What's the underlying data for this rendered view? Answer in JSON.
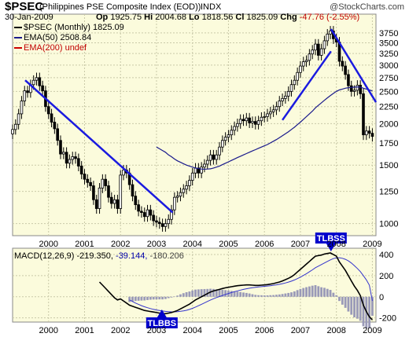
{
  "header": {
    "symbol": "$PSEC",
    "name": "(Philippines PSE Composite Index (EOD))",
    "exchange": "INDX",
    "source": "@StockCharts.com",
    "date": "30-Jan-2009",
    "ohlc": {
      "open_label": "Op",
      "open": "1925.75",
      "high_label": "Hi",
      "high": "2004.68",
      "low_label": "Lo",
      "low": "1818.56",
      "close_label": "Cl",
      "close": "1825.09",
      "chg_label": "Chg",
      "chg": "-47.76 (-2.55%)"
    }
  },
  "legend": {
    "main": "$PSEC (Monthly) 1825.09",
    "ema50": "EMA(50) 2508.84",
    "ema200": "EMA(200) undef"
  },
  "macd_legend": {
    "label": "MACD(12,26,9)",
    "macd": "-219.350,",
    "signal": "-39.144,",
    "hist": "-180.206"
  },
  "colors": {
    "plot_bg": "#fbfbdc",
    "grid": "#c9c9a8",
    "candle_up": "#ffffff",
    "candle_down": "#000000",
    "trendline": "#1a1adf",
    "ema50": "#1a1a8c",
    "ema200": "#cc0000",
    "macd_line": "#000000",
    "signal_line": "#3333cc",
    "histogram": "#9a9ab8",
    "annotation_bg": "#0000cc",
    "annotation_text": "#ffffff"
  },
  "chart_data": [
    {
      "type": "candlestick",
      "title": "$PSEC (Philippines PSE Composite Index (EOD)) INDX",
      "scale": "log",
      "period": "monthly",
      "x_ticks": [
        "2000",
        "2001",
        "2002",
        "2003",
        "2004",
        "2005",
        "2006",
        "2007",
        "2008",
        "2009"
      ],
      "x_range": [
        1999.0,
        2009.1
      ],
      "y_ticks": [
        1000,
        1250,
        1500,
        1750,
        2000,
        2250,
        2500,
        2750,
        3000,
        3250,
        3500,
        3750
      ],
      "ylim": [
        920,
        4000
      ],
      "close": [
        1920,
        1990,
        2140,
        2340,
        2510,
        2480,
        2620,
        2700,
        2750,
        2600,
        2510,
        2250,
        2140,
        2020,
        1930,
        1780,
        1620,
        1640,
        1520,
        1560,
        1590,
        1570,
        1490,
        1410,
        1360,
        1330,
        1300,
        1180,
        1110,
        1280,
        1360,
        1300,
        1200,
        1150,
        1180,
        1110,
        1400,
        1450,
        1420,
        1310,
        1210,
        1140,
        1090,
        1080,
        1050,
        1100,
        1060,
        1020,
        1010,
        1000,
        980,
        1000,
        1030,
        1100,
        1200,
        1210,
        1240,
        1270,
        1300,
        1350,
        1420,
        1470,
        1420,
        1480,
        1510,
        1550,
        1610,
        1560,
        1610,
        1700,
        1780,
        1820,
        1850,
        1910,
        1960,
        2000,
        2060,
        2040,
        2080,
        2010,
        2030,
        1990,
        2040,
        2090,
        2100,
        2140,
        2170,
        2200,
        2250,
        2340,
        2380,
        2420,
        2500,
        2620,
        2700,
        2850,
        2980,
        3070,
        3100,
        3240,
        3330,
        3470,
        3210,
        3360,
        3550,
        3720,
        3800,
        3600,
        3520,
        3080,
        2980,
        2810,
        2600,
        2500,
        2520,
        2610,
        2460,
        1850,
        1900,
        1870,
        1830
      ],
      "ema50": [
        null,
        null,
        null,
        null,
        null,
        null,
        null,
        null,
        null,
        null,
        null,
        null,
        null,
        null,
        null,
        null,
        null,
        null,
        null,
        null,
        null,
        null,
        null,
        null,
        null,
        null,
        null,
        null,
        null,
        null,
        null,
        null,
        null,
        null,
        null,
        null,
        null,
        null,
        null,
        null,
        null,
        null,
        null,
        null,
        null,
        null,
        null,
        null,
        1700,
        1680,
        1660,
        1640,
        1610,
        1590,
        1565,
        1545,
        1530,
        1515,
        1500,
        1490,
        1480,
        1470,
        1465,
        1460,
        1458,
        1460,
        1462,
        1470,
        1480,
        1490,
        1505,
        1520,
        1535,
        1550,
        1565,
        1580,
        1595,
        1610,
        1625,
        1640,
        1655,
        1670,
        1685,
        1700,
        1715,
        1730,
        1750,
        1770,
        1790,
        1815,
        1840,
        1865,
        1890,
        1920,
        1950,
        1985,
        2020,
        2060,
        2100,
        2140,
        2180,
        2230,
        2270,
        2310,
        2350,
        2390,
        2430,
        2465,
        2500,
        2525,
        2540,
        2555,
        2565,
        2570,
        2575,
        2578,
        2575,
        2555,
        2540,
        2525,
        2508.84
      ],
      "ema200": "undef",
      "trendlines": [
        {
          "from": [
            1999.35,
            2700
          ],
          "to": [
            2003.45,
            1080
          ]
        },
        {
          "from": [
            2006.5,
            2050
          ],
          "to": [
            2007.85,
            3300
          ]
        },
        {
          "from": [
            2007.85,
            3850
          ],
          "to": [
            2009.1,
            2320
          ]
        }
      ]
    },
    {
      "type": "macd",
      "title": "MACD(12,26,9) -219.350, -39.144, -180.206",
      "x_ticks": [
        "2000",
        "2001",
        "2002",
        "2003",
        "2004",
        "2005",
        "2006",
        "2007",
        "2008",
        "2009"
      ],
      "y_ticks": [
        400,
        200,
        0,
        -200
      ],
      "ylim": [
        -240,
        460
      ],
      "macd": [
        null,
        null,
        null,
        null,
        null,
        null,
        null,
        null,
        null,
        null,
        null,
        null,
        null,
        null,
        null,
        null,
        null,
        null,
        null,
        null,
        null,
        null,
        null,
        null,
        null,
        null,
        null,
        null,
        null,
        140,
        110,
        80,
        50,
        20,
        -10,
        -30,
        -20,
        -40,
        -60,
        -80,
        -90,
        -100,
        -110,
        -120,
        -130,
        -135,
        -140,
        -145,
        -150,
        -155,
        -160,
        -160,
        -155,
        -150,
        -140,
        -130,
        -115,
        -100,
        -85,
        -70,
        -50,
        -30,
        -15,
        0,
        15,
        30,
        45,
        55,
        62,
        70,
        78,
        85,
        90,
        95,
        100,
        105,
        108,
        110,
        112,
        112,
        110,
        108,
        108,
        110,
        112,
        115,
        120,
        125,
        132,
        140,
        150,
        162,
        175,
        190,
        210,
        235,
        260,
        285,
        310,
        335,
        360,
        385,
        390,
        395,
        405,
        410,
        415,
        400,
        385,
        330,
        290,
        250,
        200,
        150,
        100,
        60,
        10,
        -80,
        -140,
        -190,
        -219.35
      ],
      "signal": [
        null,
        null,
        null,
        null,
        null,
        null,
        null,
        null,
        null,
        null,
        null,
        null,
        null,
        null,
        null,
        null,
        null,
        null,
        null,
        null,
        null,
        null,
        null,
        null,
        null,
        null,
        null,
        null,
        null,
        null,
        null,
        null,
        null,
        null,
        null,
        null,
        null,
        null,
        null,
        -30,
        -45,
        -60,
        -72,
        -84,
        -95,
        -104,
        -112,
        -119,
        -125,
        -130,
        -135,
        -139,
        -142,
        -143,
        -143,
        -141,
        -138,
        -134,
        -128,
        -120,
        -110,
        -98,
        -85,
        -72,
        -58,
        -44,
        -31,
        -19,
        -8,
        2,
        12,
        22,
        31,
        40,
        48,
        56,
        63,
        70,
        76,
        81,
        86,
        90,
        93,
        96,
        99,
        102,
        105,
        109,
        113,
        118,
        124,
        131,
        139,
        148,
        159,
        172,
        186,
        202,
        219,
        237,
        255,
        275,
        290,
        305,
        320,
        335,
        350,
        362,
        370,
        370,
        365,
        355,
        340,
        320,
        295,
        268,
        238,
        200,
        160,
        110,
        -39.144
      ],
      "annotations": [
        {
          "text": "TLBSS",
          "x": 2007.85,
          "pane": "top"
        },
        {
          "text": "TLBBS",
          "x": 2003.15,
          "pane": "bottom"
        }
      ]
    }
  ]
}
